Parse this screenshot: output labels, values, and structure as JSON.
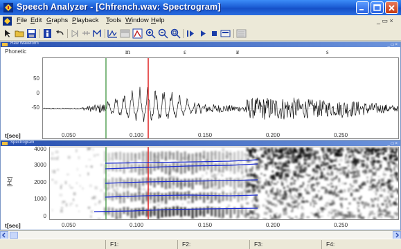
{
  "window": {
    "title": "Speech Analyzer - [Chfrench.wav: Spectrogram]"
  },
  "menu": {
    "items": [
      {
        "label": "File"
      },
      {
        "label": "Edit"
      },
      {
        "label": "Graphs"
      },
      {
        "label": "Playback"
      },
      {
        "label": "Tools"
      },
      {
        "label": "Window"
      },
      {
        "label": "Help"
      }
    ],
    "mdi_controls": "_ ▭ ×"
  },
  "toolbar": {
    "icons": [
      "pointer-icon",
      "open-folder-icon",
      "save-icon",
      "info-icon",
      "undo-icon",
      "step-forward-icon",
      "skip-icon",
      "mark-icon",
      "waveform-graph-icon",
      "layout-icon",
      "segment-icon",
      "zoom-in-icon",
      "zoom-out-icon",
      "zoom-fit-icon",
      "play-segment-icon",
      "play-icon",
      "stop-icon",
      "record-icon",
      "graph-config-icon"
    ]
  },
  "raw_pane": {
    "caption": "Raw Waveform",
    "phonetic_label": "Phonetic",
    "phonetic_symbols": [
      "m",
      "ɛ",
      "ʁ",
      "s"
    ],
    "y_ticks": [
      "50",
      "0",
      "-50"
    ],
    "x_axis_label": "t[sec]",
    "x_ticks": [
      "0.050",
      "0.100",
      "0.150",
      "0.200",
      "0.250"
    ]
  },
  "spec_pane": {
    "caption": "Spectrogram",
    "y_unit": "[Hz]",
    "y_ticks": [
      "4000",
      "3000",
      "2000",
      "1000",
      "0"
    ],
    "x_axis_label": "t[sec]",
    "x_ticks": [
      "0.050",
      "0.100",
      "0.150",
      "0.200",
      "0.250"
    ]
  },
  "status": {
    "cells": [
      "F1:",
      "F2:",
      "F3:",
      "F4:"
    ]
  },
  "colors": {
    "titlebar": "#1d5fd6",
    "start_cursor": "#2e8b2e",
    "stop_cursor": "#e02020",
    "formant_track": "#1a2ad0"
  }
}
